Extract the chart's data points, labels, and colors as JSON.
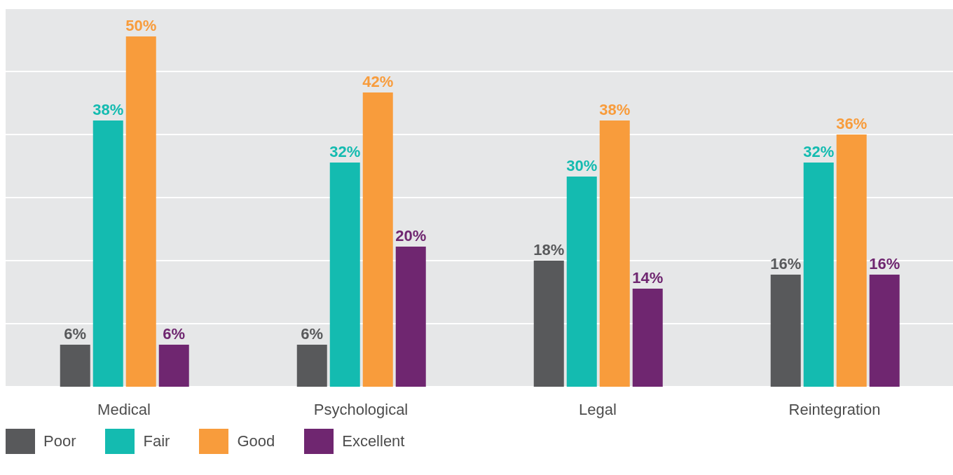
{
  "chart_data": {
    "type": "bar",
    "categories": [
      "Medical",
      "Psychological",
      "Legal",
      "Reintegration"
    ],
    "series": [
      {
        "name": "Poor",
        "color": "#58595b",
        "values": [
          6,
          6,
          18,
          16
        ],
        "value_labels": [
          "6%",
          "6%",
          "18%",
          "16%"
        ]
      },
      {
        "name": "Fair",
        "color": "#14bbb0",
        "values": [
          38,
          32,
          30,
          32
        ],
        "value_labels": [
          "38%",
          "32%",
          "30%",
          "32%"
        ]
      },
      {
        "name": "Good",
        "color": "#f89c3c",
        "values": [
          50,
          42,
          38,
          36
        ],
        "value_labels": [
          "50%",
          "42%",
          "38%",
          "36%"
        ]
      },
      {
        "name": "Excellent",
        "color": "#6f2670",
        "values": [
          6,
          20,
          14,
          16
        ],
        "value_labels": [
          "6%",
          "20%",
          "14%",
          "16%"
        ]
      }
    ],
    "tick_labels": "x",
    "grid": "y",
    "legend": "bottom left"
  }
}
